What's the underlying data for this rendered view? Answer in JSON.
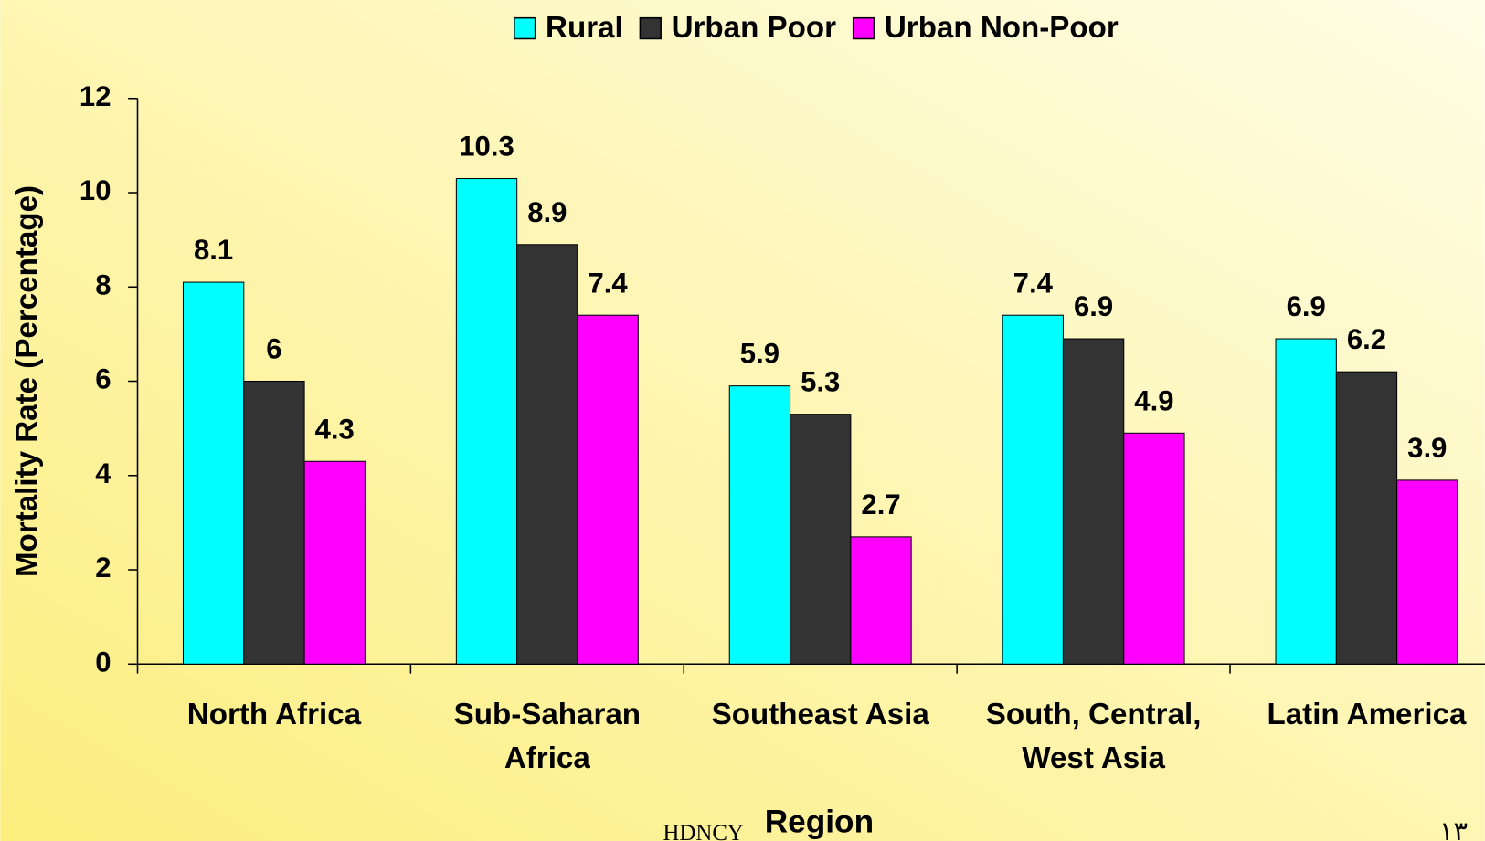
{
  "chart_data": {
    "type": "bar",
    "categories": [
      "North Africa",
      "Sub-Saharan Africa",
      "Southeast Asia",
      "South, Central, West Asia",
      "Latin America"
    ],
    "series": [
      {
        "name": "Rural",
        "color": "#00ffff",
        "values": [
          8.1,
          10.3,
          5.9,
          7.4,
          6.9
        ]
      },
      {
        "name": "Urban Poor",
        "color": "#333333",
        "values": [
          6,
          8.9,
          5.3,
          6.9,
          6.2
        ]
      },
      {
        "name": "Urban Non-Poor",
        "color": "#ff00ff",
        "values": [
          4.3,
          7.4,
          2.7,
          4.9,
          3.9
        ]
      }
    ],
    "xlabel": "Region",
    "ylabel": "Mortality Rate (Percentage)",
    "ylim": [
      0,
      12
    ],
    "yticks": [
      0,
      2,
      4,
      6,
      8,
      10,
      12
    ],
    "legend": "top"
  },
  "footer": "HDNCY",
  "page_number": "١٣"
}
